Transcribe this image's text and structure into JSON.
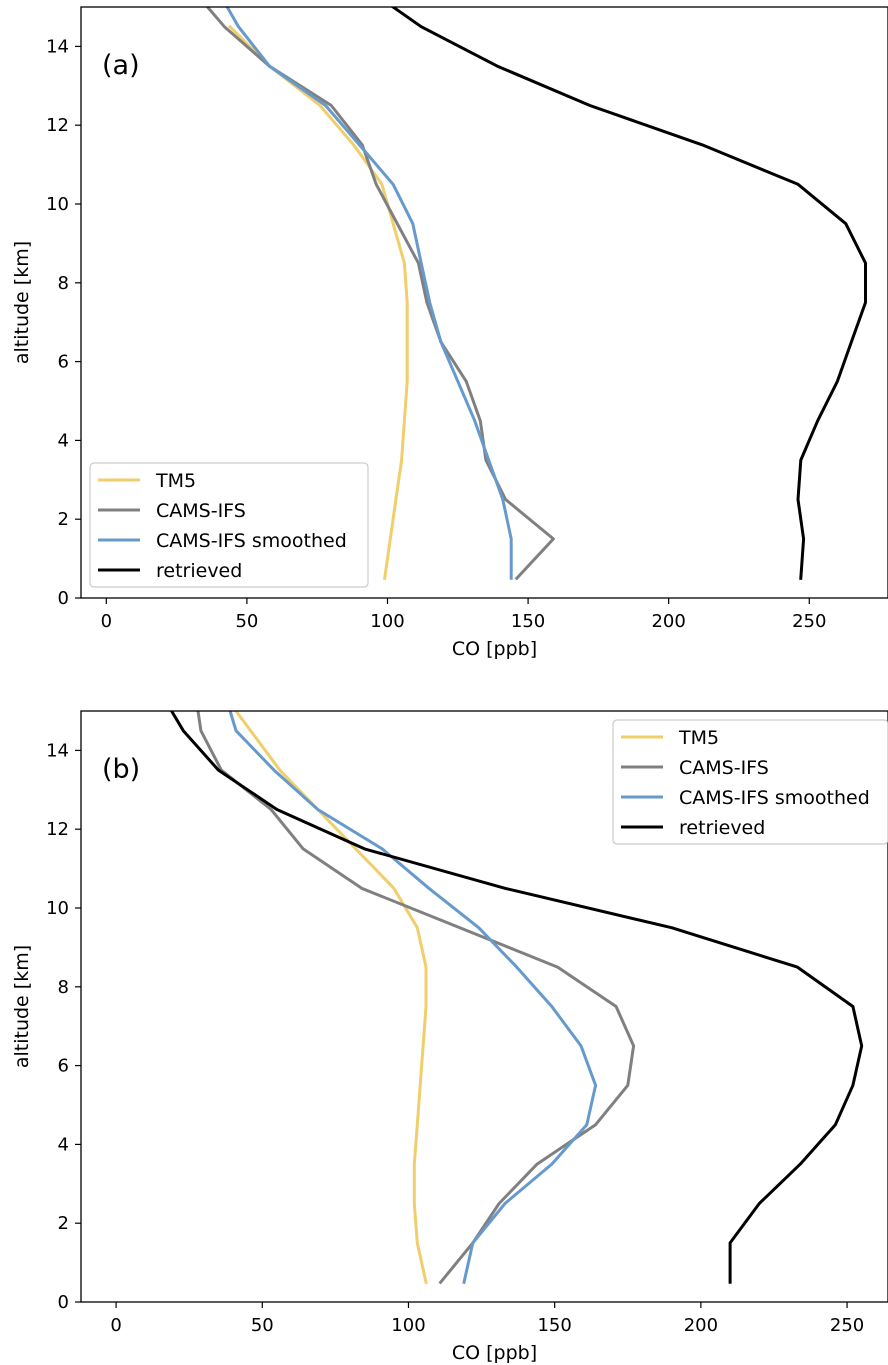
{
  "chart_data": [
    {
      "type": "line",
      "panel_label": "(a)",
      "xlabel": "CO [ppb]",
      "ylabel": "altitude [km]",
      "xlim": [
        -9,
        278
      ],
      "ylim": [
        0,
        15
      ],
      "xticks": [
        0,
        50,
        100,
        150,
        200,
        250
      ],
      "yticks": [
        0,
        2,
        4,
        6,
        8,
        10,
        12,
        14
      ],
      "legend_position": "lower-left",
      "series": [
        {
          "name": "TM5",
          "color": "#f0ce6c",
          "x": [
            99,
            101,
            103,
            105,
            106,
            107,
            107,
            107,
            106,
            98,
            88,
            76,
            58,
            44
          ],
          "y": [
            0.5,
            1.5,
            2.5,
            3.5,
            4.5,
            5.5,
            6.5,
            7.5,
            8.5,
            10.5,
            11.5,
            12.5,
            13.5,
            14.5
          ]
        },
        {
          "name": "CAMS-IFS",
          "color": "#808080",
          "x": [
            146,
            159,
            142,
            135,
            133,
            128,
            119,
            114,
            111,
            96,
            91,
            80,
            58,
            42,
            36
          ],
          "y": [
            0.5,
            1.5,
            2.5,
            3.5,
            4.5,
            5.5,
            6.5,
            7.5,
            8.5,
            10.5,
            11.5,
            12.5,
            13.5,
            14.5,
            15.0
          ]
        },
        {
          "name": "CAMS-IFS smoothed",
          "color": "#6699cc",
          "x": [
            144,
            144,
            141,
            136,
            131,
            125,
            119,
            115,
            112,
            109,
            102,
            90,
            78,
            58,
            47,
            43
          ],
          "y": [
            0.5,
            1.5,
            2.5,
            3.5,
            4.5,
            5.5,
            6.5,
            7.5,
            8.5,
            9.5,
            10.5,
            11.5,
            12.5,
            13.5,
            14.5,
            15.0
          ]
        },
        {
          "name": "retrieved",
          "color": "#000000",
          "x": [
            247,
            248,
            246,
            247,
            253,
            260,
            265,
            270,
            270,
            263,
            246,
            212,
            172,
            139,
            112,
            102
          ],
          "y": [
            0.5,
            1.5,
            2.5,
            3.5,
            4.5,
            5.5,
            6.5,
            7.5,
            8.5,
            9.5,
            10.5,
            11.5,
            12.5,
            13.5,
            14.5,
            15.0
          ]
        }
      ]
    },
    {
      "type": "line",
      "panel_label": "(b)",
      "xlabel": "CO [ppb]",
      "ylabel": "altitude [km]",
      "xlim": [
        -12,
        264
      ],
      "ylim": [
        0,
        15
      ],
      "xticks": [
        0,
        50,
        100,
        150,
        200,
        250
      ],
      "yticks": [
        0,
        2,
        4,
        6,
        8,
        10,
        12,
        14
      ],
      "legend_position": "upper-right",
      "series": [
        {
          "name": "TM5",
          "color": "#f0ce6c",
          "x": [
            106,
            103,
            102,
            102,
            103,
            104,
            105,
            106,
            106,
            103,
            95,
            82,
            69,
            56,
            41
          ],
          "y": [
            0.5,
            1.5,
            2.5,
            3.5,
            4.5,
            5.5,
            6.5,
            7.5,
            8.5,
            9.5,
            10.5,
            11.5,
            12.5,
            13.5,
            15.0
          ]
        },
        {
          "name": "CAMS-IFS",
          "color": "#808080",
          "x": [
            111,
            122,
            131,
            144,
            164,
            175,
            177,
            171,
            151,
            84,
            64,
            53,
            36,
            29,
            28
          ],
          "y": [
            0.5,
            1.5,
            2.5,
            3.5,
            4.5,
            5.5,
            6.5,
            7.5,
            8.5,
            10.5,
            11.5,
            12.5,
            13.5,
            14.5,
            15.0
          ]
        },
        {
          "name": "CAMS-IFS smoothed",
          "color": "#6699cc",
          "x": [
            119,
            122,
            133,
            149,
            161,
            164,
            159,
            149,
            137,
            124,
            107,
            91,
            69,
            54,
            41,
            39
          ],
          "y": [
            0.5,
            1.5,
            2.5,
            3.5,
            4.5,
            5.5,
            6.5,
            7.5,
            8.5,
            9.5,
            10.5,
            11.5,
            12.5,
            13.5,
            14.5,
            15.0
          ]
        },
        {
          "name": "retrieved",
          "color": "#000000",
          "x": [
            210,
            210,
            220,
            234,
            246,
            252,
            255,
            252,
            233,
            190,
            133,
            85,
            55,
            35,
            23,
            19
          ],
          "y": [
            0.5,
            1.5,
            2.5,
            3.5,
            4.5,
            5.5,
            6.5,
            7.5,
            8.5,
            9.5,
            10.5,
            11.5,
            12.5,
            13.5,
            14.5,
            15.0
          ]
        }
      ]
    }
  ]
}
